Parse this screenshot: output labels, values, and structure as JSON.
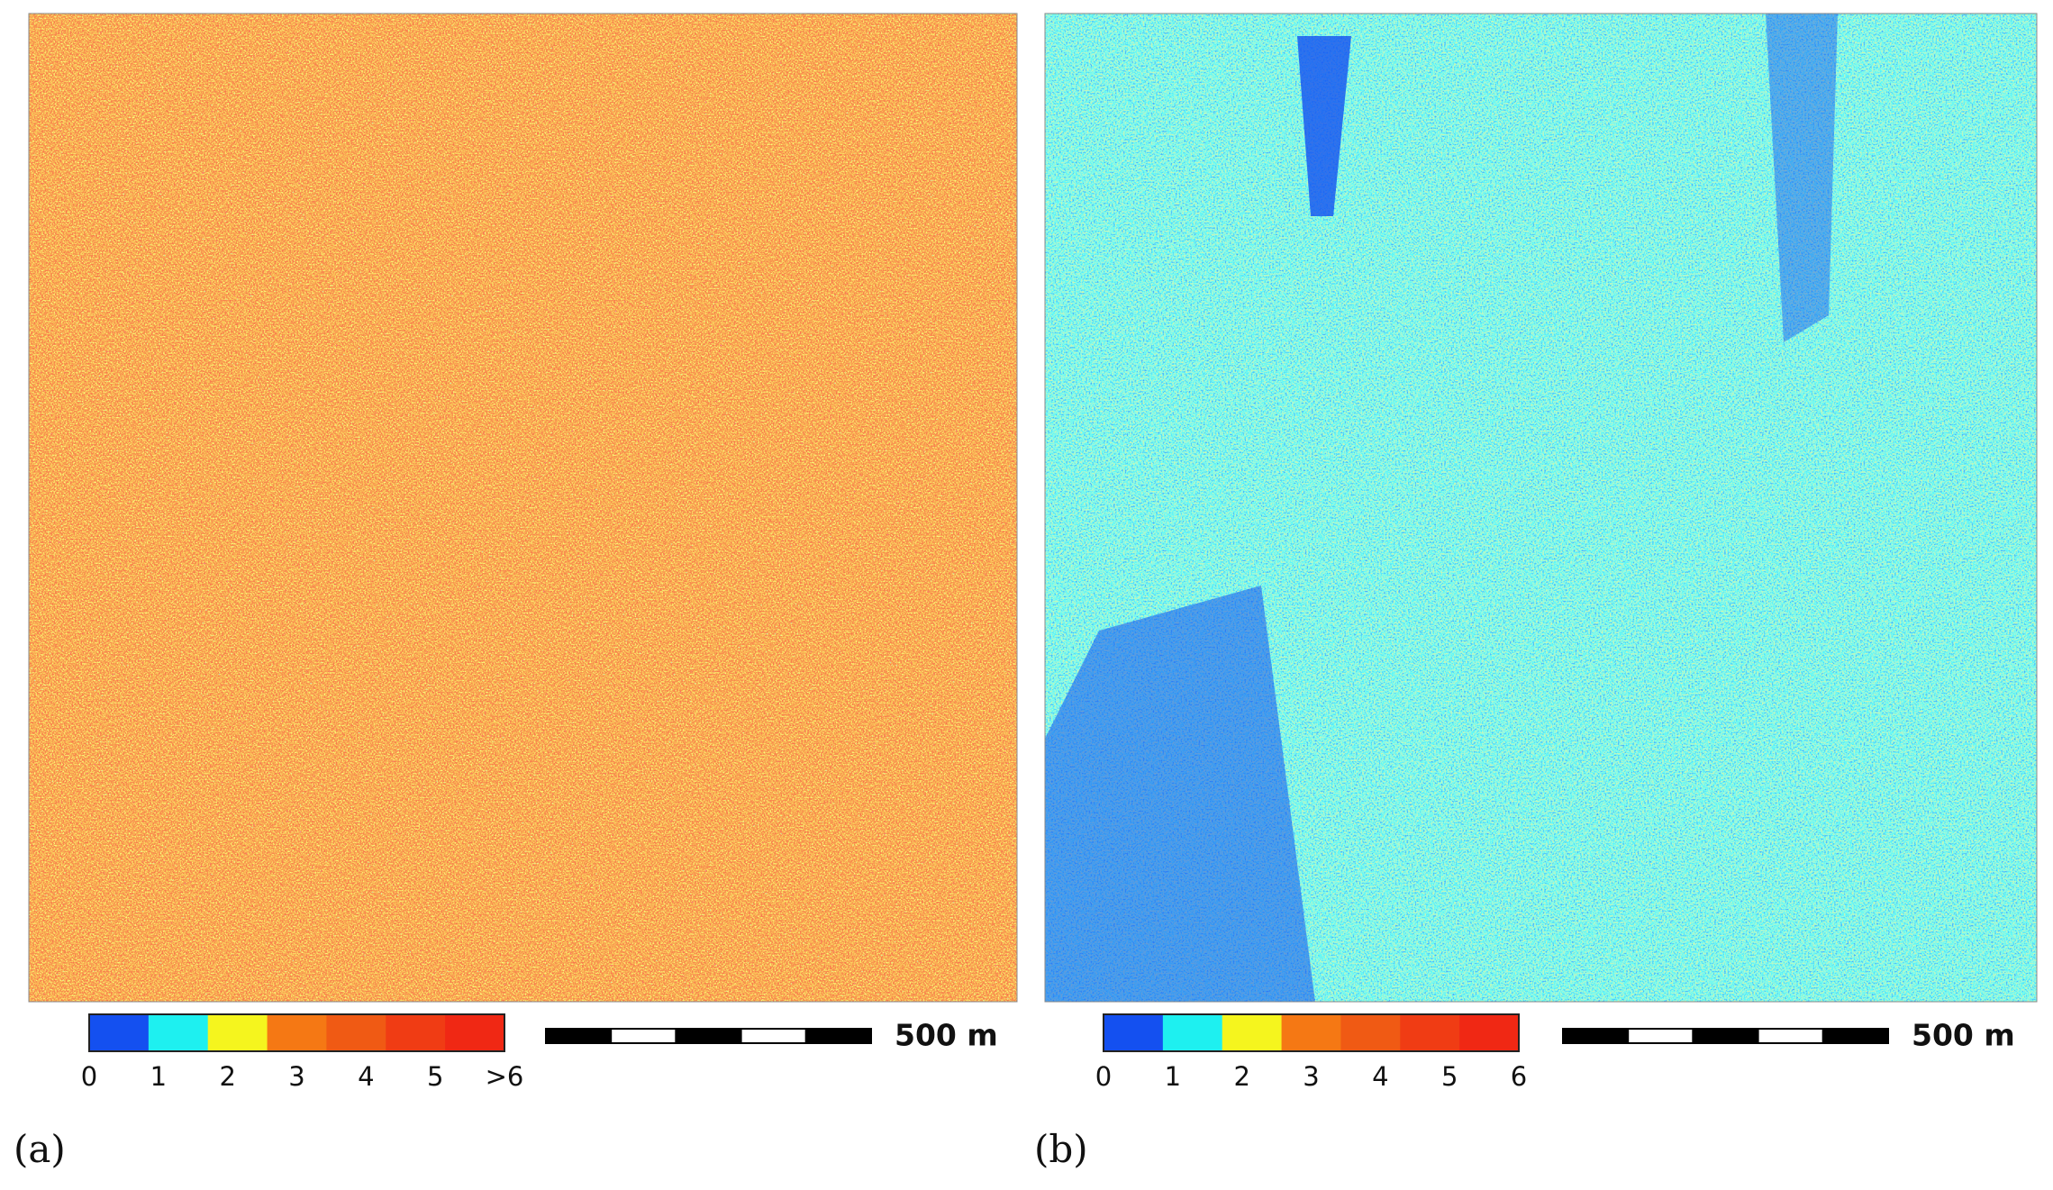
{
  "panels": [
    {
      "label": "(a)",
      "legend_ticks": [
        "0",
        "1",
        "2",
        "3",
        "4",
        "5",
        ">6"
      ],
      "scale_label": "500 m"
    },
    {
      "label": "(b)",
      "legend_ticks": [
        "0",
        "1",
        "2",
        "3",
        "4",
        "5",
        "6"
      ],
      "scale_label": "500 m"
    }
  ],
  "legend_colors": [
    "#1450f0",
    "#1ef0f0",
    "#f5f51e",
    "#f57814",
    "#f05a14",
    "#f03c14",
    "#f02814"
  ]
}
